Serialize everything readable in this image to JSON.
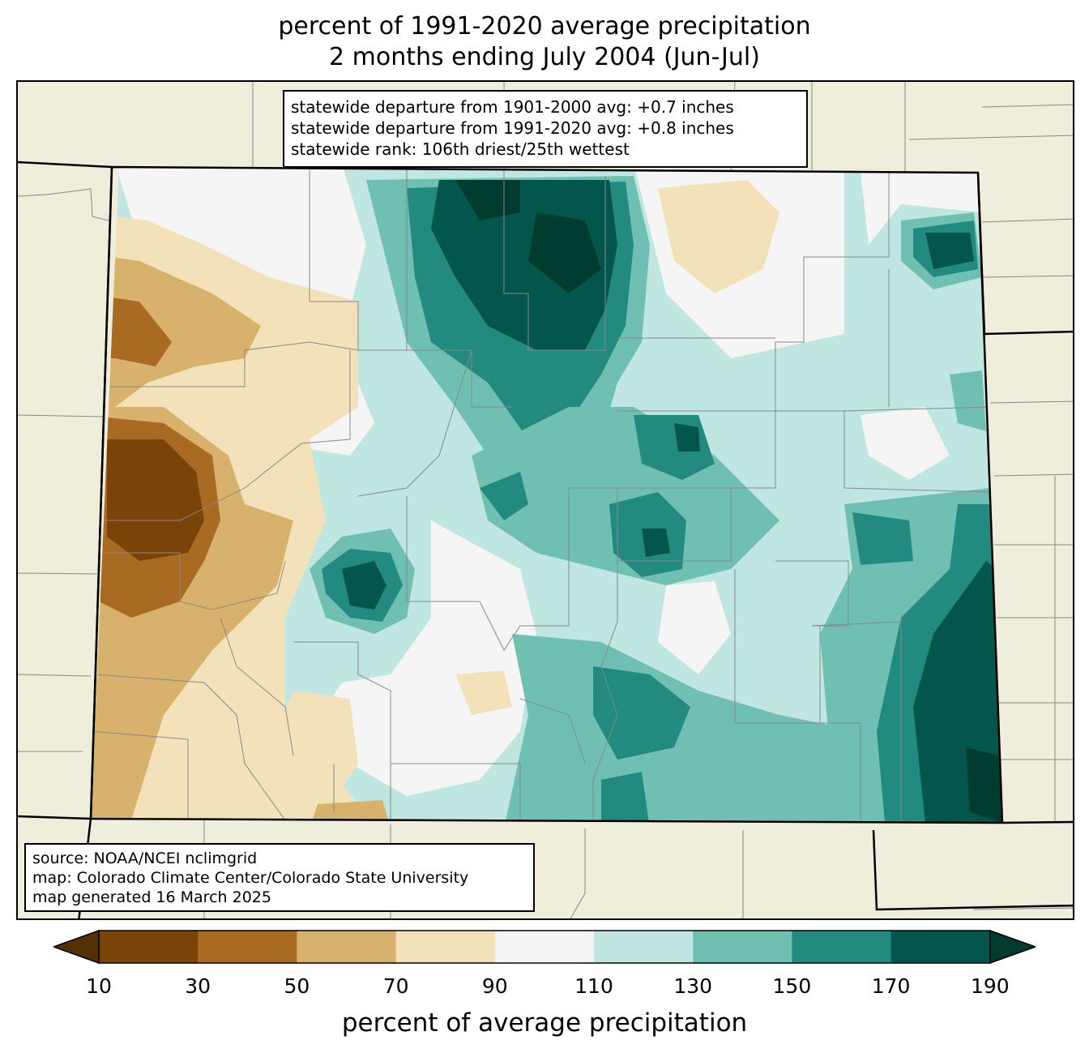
{
  "title": {
    "line1": "percent of 1991-2020 average precipitation",
    "line2": "2 months ending July 2004 (Jun-Jul)"
  },
  "stats_box": {
    "line1": "statewide departure from 1901-2000 avg: +0.7 inches",
    "line2": "statewide departure from 1991-2020 avg: +0.8 inches",
    "line3": "statewide rank: 106th driest/25th wettest"
  },
  "source_box": {
    "line1": "source: NOAA/NCEI nclimgrid",
    "line2": "map: Colorado Climate Center/Colorado State University",
    "line3": "map generated 16 March 2025"
  },
  "colorbar": {
    "label": "percent of average precipitation",
    "ticks": [
      "10",
      "30",
      "50",
      "70",
      "90",
      "110",
      "130",
      "150",
      "170",
      "190"
    ],
    "bins": [
      {
        "range": "<10",
        "color": "#543005"
      },
      {
        "range": "10-30",
        "color": "#7a4409"
      },
      {
        "range": "30-50",
        "color": "#a86b21"
      },
      {
        "range": "50-70",
        "color": "#d8b26c"
      },
      {
        "range": "70-90",
        "color": "#f3e2b9"
      },
      {
        "range": "90-110",
        "color": "#f4f5f4"
      },
      {
        "range": "110-130",
        "color": "#bfe6e0"
      },
      {
        "range": "130-150",
        "color": "#6fc0b3"
      },
      {
        "range": "150-170",
        "color": "#238a7f"
      },
      {
        "range": "170-190",
        "color": "#02564b"
      },
      {
        "range": ">190",
        "color": "#003b30"
      }
    ]
  },
  "colors": {
    "background_land": "#efeedb",
    "county_lines": "#888888",
    "state_lines": "#000000"
  }
}
